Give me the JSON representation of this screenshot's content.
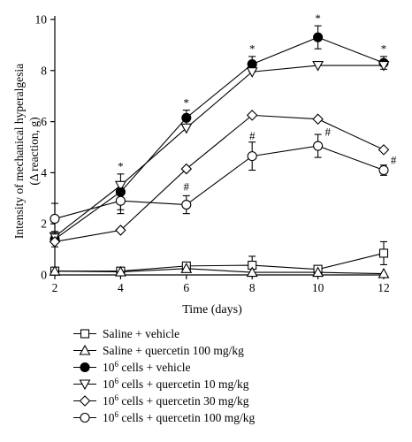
{
  "chart_data": {
    "type": "line",
    "xlabel": "Time (days)",
    "ylabel_line1": "Intensity of mechanical hyperalgesia",
    "ylabel_line2": "(Δ reaction, g)",
    "x": [
      2,
      4,
      6,
      8,
      10,
      12
    ],
    "xlim": [
      2,
      12
    ],
    "ylim": [
      0,
      10
    ],
    "xticks": [
      2,
      4,
      6,
      8,
      10,
      12
    ],
    "yticks": [
      0,
      2,
      4,
      6,
      8,
      10
    ],
    "grid": false,
    "legend_position": "bottom",
    "series": [
      {
        "name": "Saline + vehicle",
        "marker": "square",
        "fill": "open",
        "values": [
          0.15,
          0.15,
          0.35,
          0.38,
          0.22,
          0.85
        ],
        "errors": [
          0.0,
          0.0,
          0.15,
          0.35,
          0.0,
          0.45
        ]
      },
      {
        "name": "Saline + quercetin 100 mg/kg",
        "marker": "triangle-up",
        "fill": "open",
        "values": [
          0.15,
          0.12,
          0.25,
          0.1,
          0.1,
          0.05
        ],
        "errors": [
          0.0,
          0.0,
          0.0,
          0.0,
          0.0,
          0.0
        ]
      },
      {
        "name_super": "6",
        "name_suffix": " cells + vehicle",
        "marker": "circle",
        "fill": "filled",
        "values": [
          1.4,
          3.25,
          6.15,
          8.25,
          9.3,
          8.3
        ],
        "errors": [
          0.3,
          0.7,
          0.3,
          0.3,
          0.45,
          0.25
        ]
      },
      {
        "name_super": "6",
        "name_suffix": " cells + quercetin 10 mg/kg",
        "marker": "triangle-down",
        "fill": "open",
        "values": [
          1.5,
          3.5,
          5.75,
          7.95,
          8.2,
          8.2
        ],
        "errors": [
          0.0,
          0.0,
          0.0,
          0.0,
          0.0,
          0.0
        ]
      },
      {
        "name_super": "6",
        "name_suffix": " cells + quercetin 30 mg/kg",
        "marker": "diamond",
        "fill": "open",
        "values": [
          1.3,
          1.75,
          4.15,
          6.25,
          6.1,
          4.9
        ],
        "errors": [
          0.0,
          0.0,
          0.0,
          0.0,
          0.0,
          0.0
        ]
      },
      {
        "name_super": "6",
        "name_suffix": " cells + quercetin 100 mg/kg",
        "marker": "circle",
        "fill": "open",
        "values": [
          2.2,
          2.9,
          2.75,
          4.65,
          5.05,
          4.1
        ],
        "errors": [
          0.6,
          0.5,
          0.35,
          0.55,
          0.45,
          0.2
        ]
      }
    ],
    "annotations": [
      {
        "text": "*",
        "x": 4,
        "y": 4.1
      },
      {
        "text": "*",
        "x": 6,
        "y": 6.6
      },
      {
        "text": "*",
        "x": 8,
        "y": 8.7
      },
      {
        "text": "*",
        "x": 10,
        "y": 9.9
      },
      {
        "text": "*",
        "x": 12,
        "y": 8.7
      },
      {
        "text": "#",
        "x": 6,
        "y": 3.3
      },
      {
        "text": "#",
        "x": 8,
        "y": 5.3
      },
      {
        "text": "#",
        "x": 10.3,
        "y": 5.45
      },
      {
        "text": "#",
        "x": 12.3,
        "y": 4.35
      }
    ],
    "legend_prefix": "10"
  }
}
